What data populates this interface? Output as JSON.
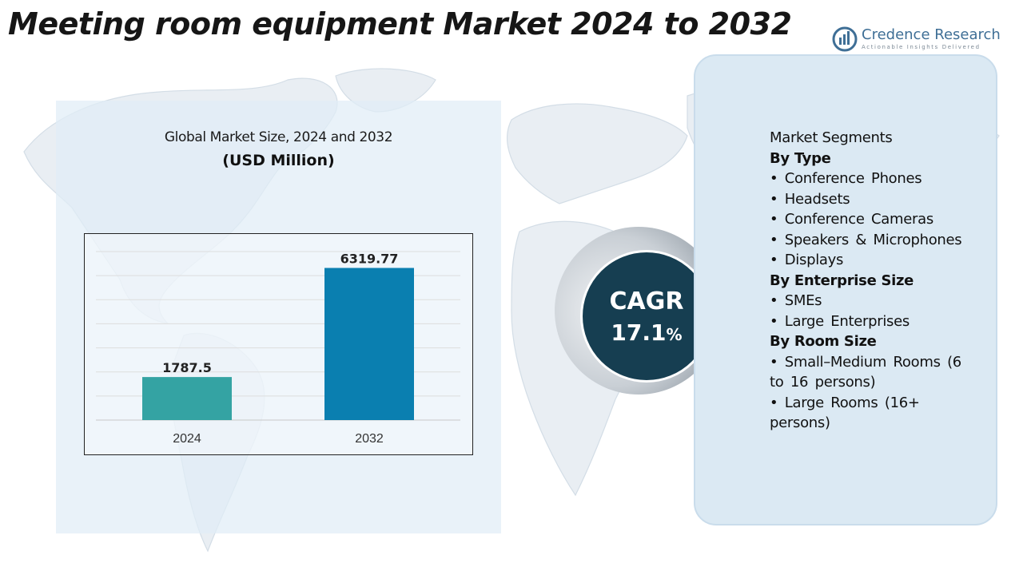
{
  "page": {
    "title": "Meeting room equipment Market 2024 to 2032"
  },
  "brand": {
    "name": "Credence Research",
    "tagline": "Actionable Insights Delivered"
  },
  "colors": {
    "bar_2024": "#34a3a3",
    "bar_2032": "#0a7fb0",
    "cagr_circle": "#163e51",
    "panel_bg": "#dbe9f3",
    "logo_blue": "#3f6f96"
  },
  "chart_data": {
    "type": "bar",
    "title": "Global Market Size, 2024 and 2032",
    "subtitle": "(USD Million)",
    "categories": [
      "2024",
      "2032"
    ],
    "values": [
      1787.5,
      6319.77
    ],
    "value_labels": [
      "1787.5",
      "6319.77"
    ],
    "ylim": [
      0,
      7000
    ],
    "grid": true,
    "xlabel": "",
    "ylabel": ""
  },
  "cagr": {
    "label": "CAGR",
    "value": "17.1",
    "unit": "%"
  },
  "segments": {
    "heading": "Market Segments",
    "groups": [
      {
        "title": "By Type",
        "items": [
          "•  Conference Phones",
          "•   Headsets",
          "•   Conference Cameras",
          "•    Speakers & Microphones",
          "•     Displays"
        ]
      },
      {
        "title": "By Enterprise Size",
        "items": [
          "•    SMEs",
          "•   Large Enterprises"
        ]
      },
      {
        "title": "By Room Size",
        "items": [
          "•    Small–Medium Rooms (6 to 16 persons)",
          "•     Large Rooms (16+ persons)"
        ]
      }
    ]
  }
}
